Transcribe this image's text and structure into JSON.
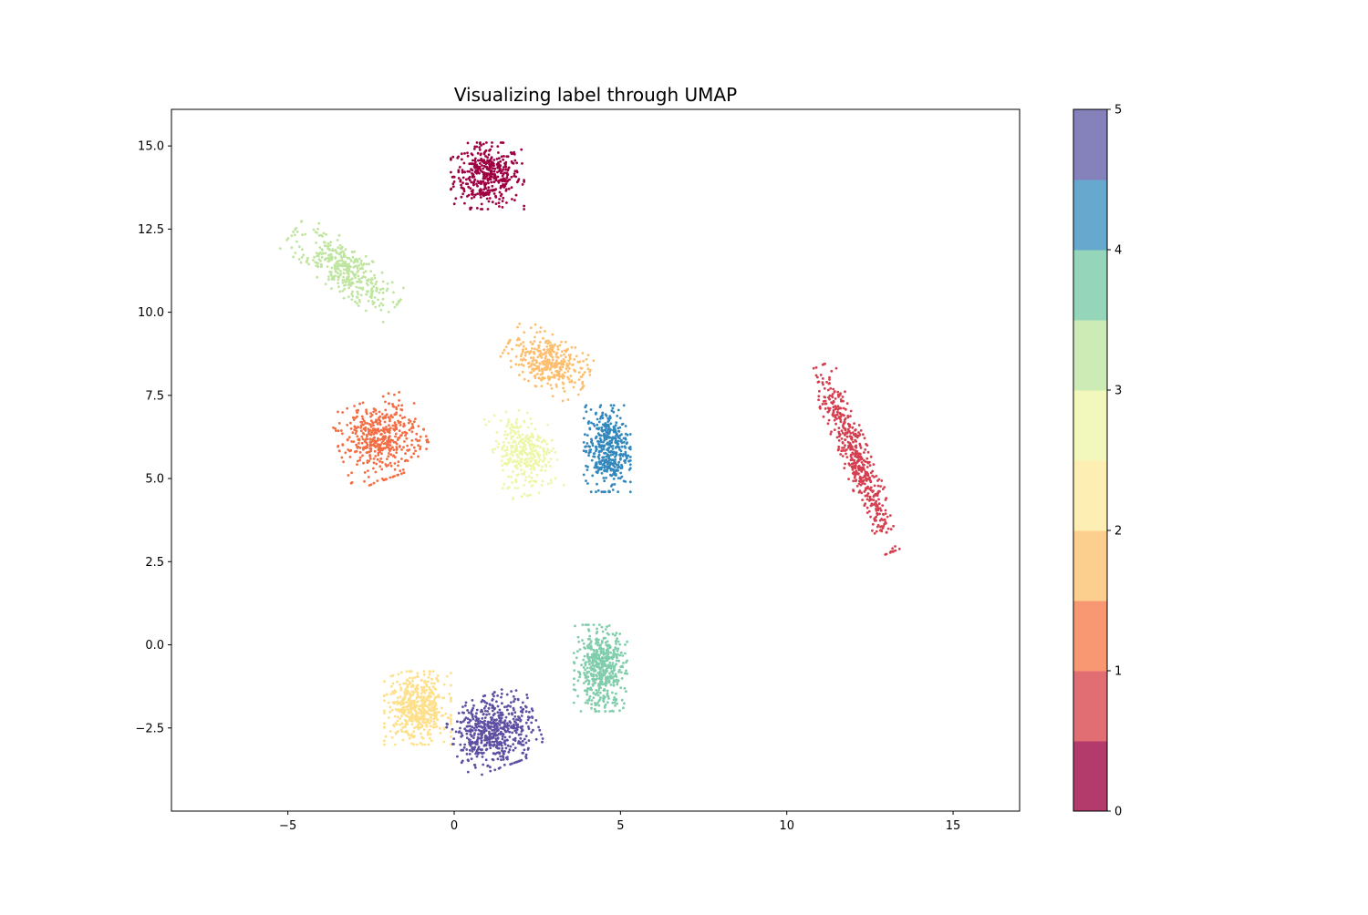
{
  "chart_data": {
    "type": "scatter",
    "title": "Visualizing label through UMAP",
    "xlabel": "",
    "ylabel": "",
    "xlim": [
      -8.5,
      17
    ],
    "ylim": [
      -5,
      16.1
    ],
    "x_ticks": [
      -5,
      0,
      5,
      10,
      15
    ],
    "x_tick_labels": [
      "−5",
      "0",
      "5",
      "10",
      "15"
    ],
    "y_ticks": [
      -2.5,
      0,
      2.5,
      5,
      7.5,
      10,
      12.5,
      15
    ],
    "y_tick_labels": [
      "−2.5",
      "0.0",
      "2.5",
      "5.0",
      "7.5",
      "10.0",
      "12.5",
      "15.0"
    ],
    "grid": false,
    "colorbar": {
      "range": [
        0,
        5
      ],
      "ticks": [
        0,
        1,
        2,
        3,
        4,
        5
      ],
      "tick_labels": [
        "0",
        "1",
        "2",
        "3",
        "4",
        "5"
      ],
      "colors": [
        "#b23b6c",
        "#e06e73",
        "#f89873",
        "#fccf8f",
        "#fdefb3",
        "#f2f8bb",
        "#cdebb5",
        "#95d6bb",
        "#67a9ce",
        "#8581bb"
      ]
    },
    "clusters": [
      {
        "label": 0,
        "color": "#9e0142",
        "center": [
          1.0,
          14.1
        ],
        "spread": [
          1.1,
          1.0
        ],
        "angle": 0,
        "count": 420
      },
      {
        "label": 3,
        "color": "#bfe5a0",
        "center": [
          -3.3,
          11.3
        ],
        "spread": [
          1.9,
          0.7
        ],
        "angle": -38,
        "count": 380
      },
      {
        "label": 1,
        "color": "#f46d43",
        "center": [
          -2.2,
          6.2
        ],
        "spread": [
          1.3,
          1.2
        ],
        "angle": 20,
        "count": 460
      },
      {
        "label": 2,
        "color": "#fdbf6f",
        "center": [
          2.8,
          8.5
        ],
        "spread": [
          1.3,
          0.8
        ],
        "angle": -30,
        "count": 360
      },
      {
        "label": 3,
        "color": "#eef6a8",
        "center": [
          2.1,
          5.8
        ],
        "spread": [
          0.9,
          1.3
        ],
        "angle": 15,
        "count": 320
      },
      {
        "label": 4,
        "color": "#3288bd",
        "center": [
          4.6,
          5.9
        ],
        "spread": [
          0.7,
          1.3
        ],
        "angle": 0,
        "count": 420
      },
      {
        "label": 1,
        "color": "#d53e4f",
        "center": [
          12.1,
          5.6
        ],
        "spread": [
          3.0,
          0.45
        ],
        "angle": -68,
        "count": 480
      },
      {
        "label": 2,
        "color": "#fee08b",
        "center": [
          -1.1,
          -1.9
        ],
        "spread": [
          1.0,
          1.1
        ],
        "angle": 0,
        "count": 520
      },
      {
        "label": 5,
        "color": "#5e4fa2",
        "center": [
          1.2,
          -2.6
        ],
        "spread": [
          1.3,
          1.1
        ],
        "angle": 20,
        "count": 560
      },
      {
        "label": 4,
        "color": "#80cdab",
        "center": [
          4.4,
          -0.7
        ],
        "spread": [
          0.8,
          1.3
        ],
        "angle": 0,
        "count": 500
      }
    ]
  }
}
